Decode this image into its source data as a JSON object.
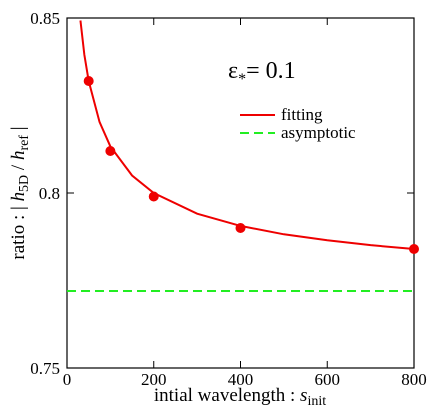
{
  "chart_data": {
    "type": "line",
    "ylabel_parts": [
      "ratio : | ",
      "h",
      "5D",
      " / ",
      "h",
      "ref",
      " |"
    ],
    "xlabel_parts": [
      "intial wavelength : ",
      "s",
      "init"
    ],
    "annotation_parts": [
      "ε",
      "*",
      "= 0.1"
    ],
    "xlim": [
      0,
      800
    ],
    "xticks": [
      0,
      200,
      400,
      600,
      800
    ],
    "ylim": [
      0.75,
      0.85
    ],
    "yticks": [
      0.75,
      0.8,
      0.85
    ],
    "series": [
      {
        "name": "fitting",
        "color": "#ee0000",
        "dash": false,
        "x": [
          31,
          40,
          50,
          75,
          100,
          150,
          200,
          300,
          400,
          500,
          600,
          700,
          800
        ],
        "values": [
          0.8493,
          0.8395,
          0.832,
          0.8203,
          0.8133,
          0.805,
          0.8,
          0.7941,
          0.7906,
          0.7882,
          0.7865,
          0.7851,
          0.784
        ]
      },
      {
        "name": "asymptotic",
        "color": "#22ee22",
        "dash": true,
        "x": [
          0,
          800
        ],
        "values": [
          0.772,
          0.772
        ]
      }
    ],
    "points": {
      "color": "#ee0000",
      "x": [
        50,
        100,
        200,
        400,
        800
      ],
      "values": [
        0.832,
        0.812,
        0.799,
        0.79,
        0.784
      ]
    }
  }
}
